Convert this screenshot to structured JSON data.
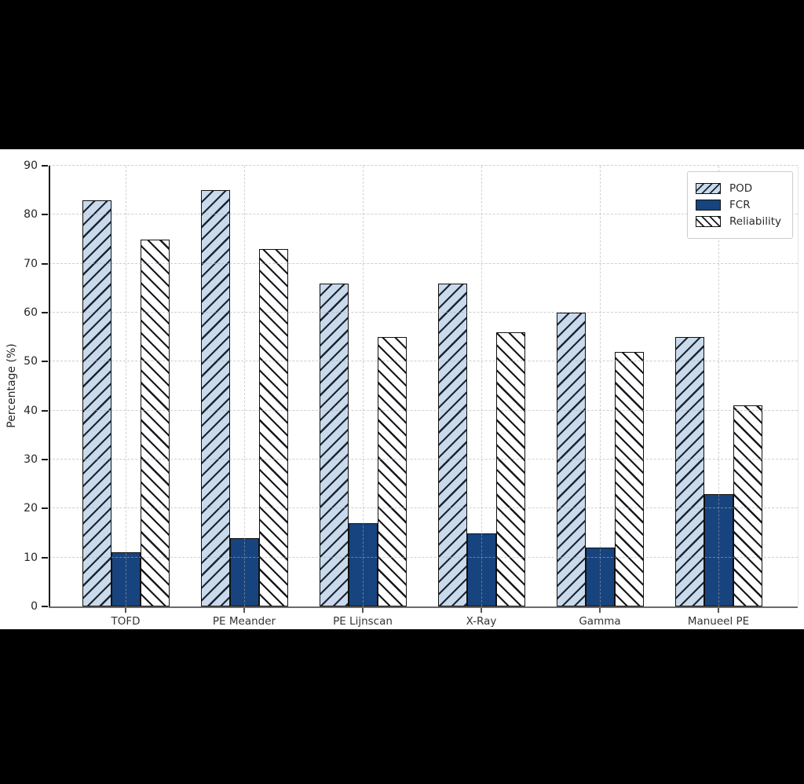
{
  "page": {
    "outer_background": "#000000",
    "figure_background": "#ffffff"
  },
  "chart_data": {
    "type": "bar",
    "title": "",
    "xlabel": "",
    "ylabel": "Percentage (%)",
    "ylim": [
      0,
      90
    ],
    "ytick_step": 10,
    "yticks": [
      0,
      10,
      20,
      30,
      40,
      50,
      60,
      70,
      80,
      90
    ],
    "grid": true,
    "grid_style": "dashed",
    "legend_position": "top-right",
    "categories": [
      "TOFD",
      "PE Meander",
      "PE Lijnscan",
      "X-Ray",
      "Gamma",
      "Manueel PE"
    ],
    "series": [
      {
        "name": "POD",
        "values": [
          83,
          85,
          66,
          66,
          60,
          55
        ],
        "fill": "#c9daec",
        "hatch": "/"
      },
      {
        "name": "FCR",
        "values": [
          11,
          14,
          17,
          15,
          12,
          23
        ],
        "fill": "#17447e",
        "hatch": ""
      },
      {
        "name": "Reliability",
        "values": [
          75,
          73,
          55,
          56,
          52,
          41
        ],
        "fill": "#ffffff",
        "hatch": "\\"
      }
    ],
    "bar_edge_color": "#111111",
    "hatch_color": "#1d2430"
  }
}
